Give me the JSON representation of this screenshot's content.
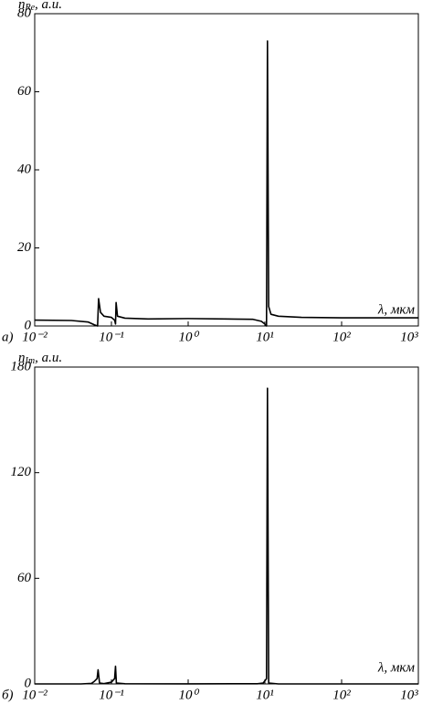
{
  "chart_data": [
    {
      "type": "line",
      "panel_label": "а)",
      "log_x": true,
      "y_label": {
        "main": "n",
        "sub": "Re",
        "rest": ", а.и."
      },
      "x_label": "λ, мкм",
      "xlim": [
        0.01,
        1000
      ],
      "ylim": [
        0,
        80
      ],
      "xticks": [
        {
          "value": 0.01,
          "label": "10⁻²"
        },
        {
          "value": 0.1,
          "label": "10⁻¹"
        },
        {
          "value": 1,
          "label": "10⁰"
        },
        {
          "value": 10,
          "label": "10¹"
        },
        {
          "value": 100,
          "label": "10²"
        },
        {
          "value": 1000,
          "label": "10³"
        }
      ],
      "yticks": [
        0,
        20,
        40,
        60,
        80
      ],
      "series": [
        {
          "color": "#000000",
          "x": [
            0.01,
            0.03,
            0.05,
            0.06,
            0.066,
            0.068,
            0.072,
            0.08,
            0.1,
            0.11,
            0.113,
            0.115,
            0.12,
            0.15,
            0.3,
            1,
            3,
            7,
            9,
            10,
            10.5,
            10.8,
            11.2,
            12,
            15,
            30,
            100,
            1000
          ],
          "values": [
            1.5,
            1.4,
            1.0,
            0.3,
            0,
            7,
            3.5,
            2.5,
            2.2,
            1.5,
            0.5,
            6,
            2.5,
            2,
            1.8,
            1.9,
            1.8,
            1.7,
            1.2,
            0.5,
            0,
            73,
            5,
            3,
            2.5,
            2.2,
            2.1,
            2.1
          ]
        }
      ]
    },
    {
      "type": "line",
      "panel_label": "б)",
      "log_x": true,
      "y_label": {
        "main": "n",
        "sub": "Im",
        "rest": ", а.и."
      },
      "x_label": "λ, мкм",
      "xlim": [
        0.01,
        1000
      ],
      "ylim": [
        0,
        180
      ],
      "xticks": [
        {
          "value": 0.01,
          "label": "10⁻²"
        },
        {
          "value": 0.1,
          "label": "10⁻¹"
        },
        {
          "value": 1,
          "label": "10⁰"
        },
        {
          "value": 10,
          "label": "10¹"
        },
        {
          "value": 100,
          "label": "10²"
        },
        {
          "value": 1000,
          "label": "10³"
        }
      ],
      "yticks": [
        0,
        60,
        120,
        180
      ],
      "series": [
        {
          "color": "#000000",
          "x": [
            0.01,
            0.04,
            0.055,
            0.06,
            0.065,
            0.067,
            0.07,
            0.08,
            0.1,
            0.11,
            0.113,
            0.116,
            0.15,
            1,
            8,
            9.5,
            10.5,
            10.8,
            11.2,
            15,
            1000
          ],
          "values": [
            0,
            0,
            0.3,
            1.5,
            3,
            8,
            0.5,
            0.2,
            1,
            3,
            10,
            0.5,
            0.1,
            0.05,
            0.1,
            0.5,
            3,
            168,
            0.5,
            0,
            0
          ]
        }
      ]
    }
  ]
}
